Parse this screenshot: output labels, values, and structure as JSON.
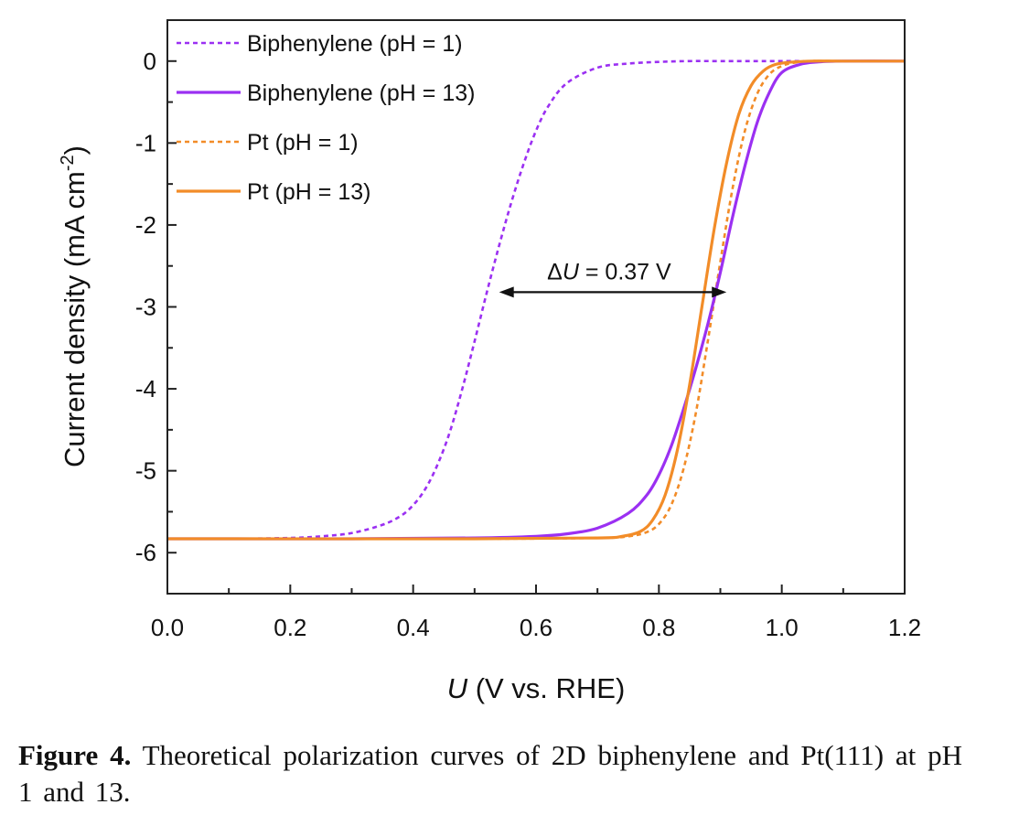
{
  "chart_data": {
    "type": "line",
    "xlabel_italic": "U",
    "xlabel_rest": " (V vs. RHE)",
    "ylabel_main": "Current density (mA cm",
    "ylabel_sup": "-2",
    "ylabel_close": ")",
    "xlim": [
      0.0,
      1.2
    ],
    "ylim": [
      -6.5,
      0.5
    ],
    "xticks": [
      "0.0",
      "0.2",
      "0.4",
      "0.6",
      "0.8",
      "1.0",
      "1.2"
    ],
    "yticks": [
      "0",
      "-1",
      "-2",
      "-3",
      "-4",
      "-5",
      "-6"
    ],
    "grid": false,
    "legend_position": "top-left",
    "series": [
      {
        "name": "Biphenylene (pH = 1)",
        "color": "#9b30f2",
        "style": "dashed",
        "x": [
          0.0,
          0.1,
          0.2,
          0.25,
          0.3,
          0.35,
          0.38,
          0.4,
          0.42,
          0.44,
          0.46,
          0.48,
          0.5,
          0.52,
          0.54,
          0.56,
          0.58,
          0.6,
          0.62,
          0.65,
          0.7,
          0.75,
          0.8,
          0.85,
          0.9,
          1.0,
          1.2
        ],
        "y": [
          -5.83,
          -5.83,
          -5.82,
          -5.8,
          -5.76,
          -5.66,
          -5.55,
          -5.42,
          -5.22,
          -4.92,
          -4.52,
          -4.0,
          -3.42,
          -2.82,
          -2.25,
          -1.72,
          -1.25,
          -0.85,
          -0.55,
          -0.27,
          -0.08,
          -0.03,
          -0.01,
          0.0,
          0.0,
          0.0,
          0.0
        ]
      },
      {
        "name": "Biphenylene (pH = 13)",
        "color": "#9b30f2",
        "style": "solid",
        "x": [
          0.0,
          0.3,
          0.5,
          0.6,
          0.65,
          0.7,
          0.75,
          0.78,
          0.8,
          0.82,
          0.84,
          0.86,
          0.88,
          0.9,
          0.92,
          0.94,
          0.96,
          0.98,
          1.0,
          1.03,
          1.06,
          1.1,
          1.2
        ],
        "y": [
          -5.83,
          -5.83,
          -5.82,
          -5.8,
          -5.77,
          -5.7,
          -5.52,
          -5.3,
          -5.05,
          -4.7,
          -4.25,
          -3.75,
          -3.2,
          -2.58,
          -1.9,
          -1.28,
          -0.75,
          -0.38,
          -0.14,
          -0.04,
          -0.01,
          0.0,
          0.0
        ]
      },
      {
        "name": "Pt (pH = 1)",
        "color": "#f28c28",
        "style": "dashed",
        "x": [
          0.0,
          0.5,
          0.7,
          0.75,
          0.78,
          0.8,
          0.82,
          0.84,
          0.86,
          0.88,
          0.9,
          0.92,
          0.94,
          0.96,
          0.98,
          1.0,
          1.02,
          1.05,
          1.1,
          1.2
        ],
        "y": [
          -5.83,
          -5.83,
          -5.82,
          -5.8,
          -5.75,
          -5.65,
          -5.42,
          -4.98,
          -4.3,
          -3.4,
          -2.45,
          -1.55,
          -0.85,
          -0.4,
          -0.16,
          -0.06,
          -0.02,
          0.0,
          0.0,
          0.0
        ]
      },
      {
        "name": "Pt (pH = 13)",
        "color": "#f28c28",
        "style": "solid",
        "x": [
          0.0,
          0.5,
          0.7,
          0.74,
          0.77,
          0.79,
          0.81,
          0.83,
          0.85,
          0.87,
          0.89,
          0.91,
          0.93,
          0.95,
          0.97,
          0.99,
          1.02,
          1.05,
          1.1,
          1.2
        ],
        "y": [
          -5.83,
          -5.83,
          -5.82,
          -5.8,
          -5.74,
          -5.6,
          -5.3,
          -4.75,
          -3.95,
          -3.0,
          -2.05,
          -1.25,
          -0.65,
          -0.3,
          -0.12,
          -0.04,
          -0.01,
          0.0,
          0.0,
          0.0
        ]
      }
    ],
    "annotation": {
      "delta": "Δ",
      "symbol": "U",
      "value": " = 0.37 V",
      "arrow_x": [
        0.54,
        0.91
      ],
      "arrow_y": -2.82
    }
  },
  "caption": {
    "label": "Figure 4.",
    "text": " Theoretical polarization curves of 2D biphenylene and Pt(111) at pH 1 and 13."
  }
}
